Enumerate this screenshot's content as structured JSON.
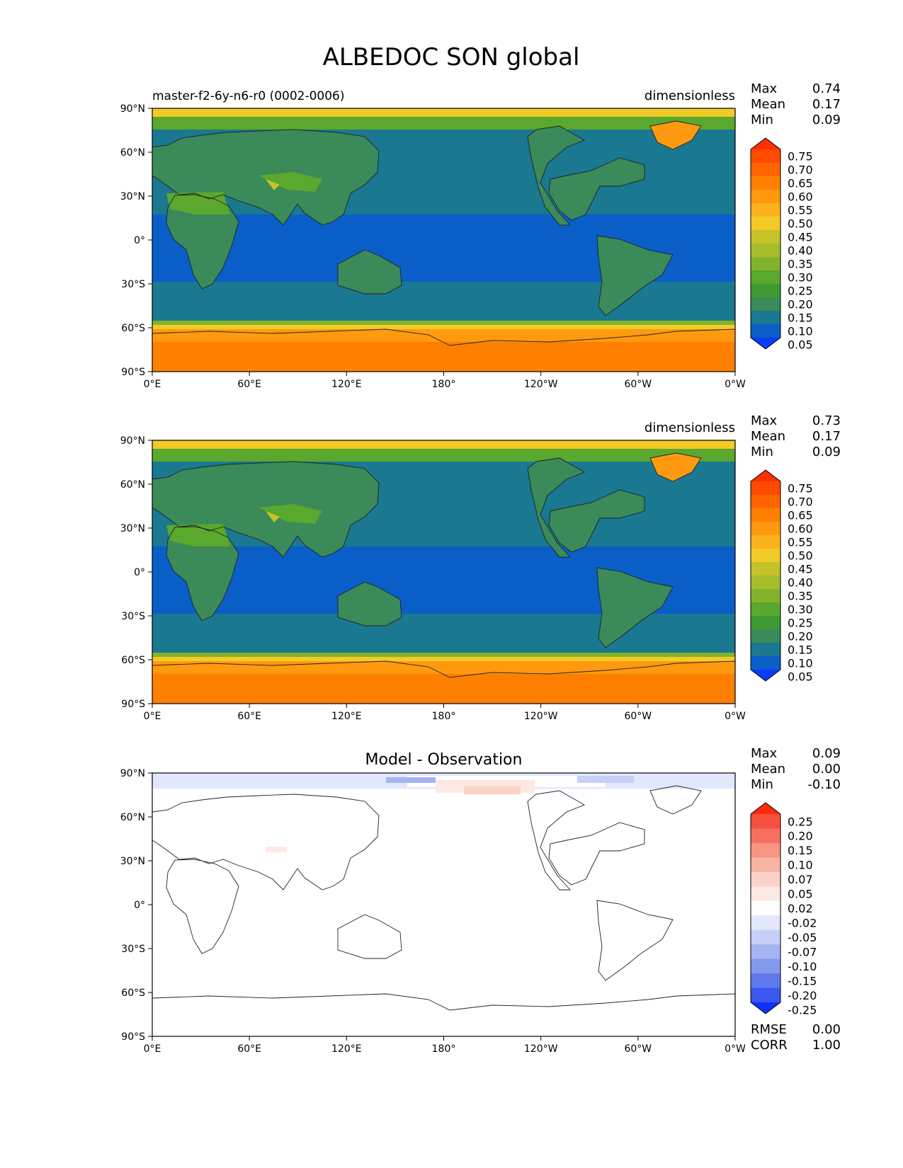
{
  "title": "ALBEDOC SON global",
  "panels": [
    {
      "left_title": "master-f2-6y-n6-r0 (0002-0006)",
      "center_title": "",
      "units": "dimensionless",
      "stats": [
        {
          "label": "Max",
          "value": "0.74"
        },
        {
          "label": "Mean",
          "value": "0.17"
        },
        {
          "label": "Min",
          "value": "0.09"
        }
      ],
      "extra_stats": [],
      "colorbar": {
        "labels": [
          "0.75",
          "0.70",
          "0.65",
          "0.60",
          "0.55",
          "0.50",
          "0.45",
          "0.40",
          "0.35",
          "0.30",
          "0.25",
          "0.20",
          "0.15",
          "0.10",
          "0.05"
        ],
        "colors": [
          "#ff3000",
          "#ff4a00",
          "#ff6400",
          "#ff8000",
          "#ff9a10",
          "#fbb21e",
          "#f2cb26",
          "#c6c229",
          "#a8bd2c",
          "#83b32c",
          "#5aa82d",
          "#3f9a33",
          "#3a8a5a",
          "#1a7890",
          "#0a5ec8",
          "#0a3df8"
        ]
      },
      "map_type": "field"
    },
    {
      "left_title": "",
      "center_title": "",
      "units": "dimensionless",
      "stats": [
        {
          "label": "Max",
          "value": "0.73"
        },
        {
          "label": "Mean",
          "value": "0.17"
        },
        {
          "label": "Min",
          "value": "0.09"
        }
      ],
      "extra_stats": [],
      "colorbar": {
        "labels": [
          "0.75",
          "0.70",
          "0.65",
          "0.60",
          "0.55",
          "0.50",
          "0.45",
          "0.40",
          "0.35",
          "0.30",
          "0.25",
          "0.20",
          "0.15",
          "0.10",
          "0.05"
        ],
        "colors": [
          "#ff3000",
          "#ff4a00",
          "#ff6400",
          "#ff8000",
          "#ff9a10",
          "#fbb21e",
          "#f2cb26",
          "#c6c229",
          "#a8bd2c",
          "#83b32c",
          "#5aa82d",
          "#3f9a33",
          "#3a8a5a",
          "#1a7890",
          "#0a5ec8",
          "#0a3df8"
        ]
      },
      "map_type": "field"
    },
    {
      "left_title": "",
      "center_title": "Model - Observation",
      "units": "",
      "stats": [
        {
          "label": "Max",
          "value": "0.09"
        },
        {
          "label": "Mean",
          "value": "0.00"
        },
        {
          "label": "Min",
          "value": "-0.10"
        }
      ],
      "extra_stats": [
        {
          "label": "RMSE",
          "value": "0.00"
        },
        {
          "label": "CORR",
          "value": "1.00"
        }
      ],
      "colorbar": {
        "labels": [
          "0.25",
          "0.20",
          "0.15",
          "0.10",
          "0.07",
          "0.05",
          "0.02",
          "-0.02",
          "-0.05",
          "-0.07",
          "-0.10",
          "-0.15",
          "-0.20",
          "-0.25"
        ],
        "colors": [
          "#ff2a0a",
          "#f65040",
          "#f7705f",
          "#f79482",
          "#f9b3a4",
          "#fbd2c7",
          "#fde9e3",
          "#ffffff",
          "#e2e7fb",
          "#c6d0f7",
          "#a6b5f2",
          "#8498ee",
          "#5f78ec",
          "#3a57ef",
          "#1031fa"
        ]
      },
      "map_type": "difference"
    }
  ],
  "axes": {
    "lat_ticks": [
      "90°N",
      "60°N",
      "30°N",
      "0°",
      "30°S",
      "60°S",
      "90°S"
    ],
    "lon_ticks": [
      "0°E",
      "60°E",
      "120°E",
      "180°",
      "120°W",
      "60°W",
      "0°W"
    ]
  }
}
